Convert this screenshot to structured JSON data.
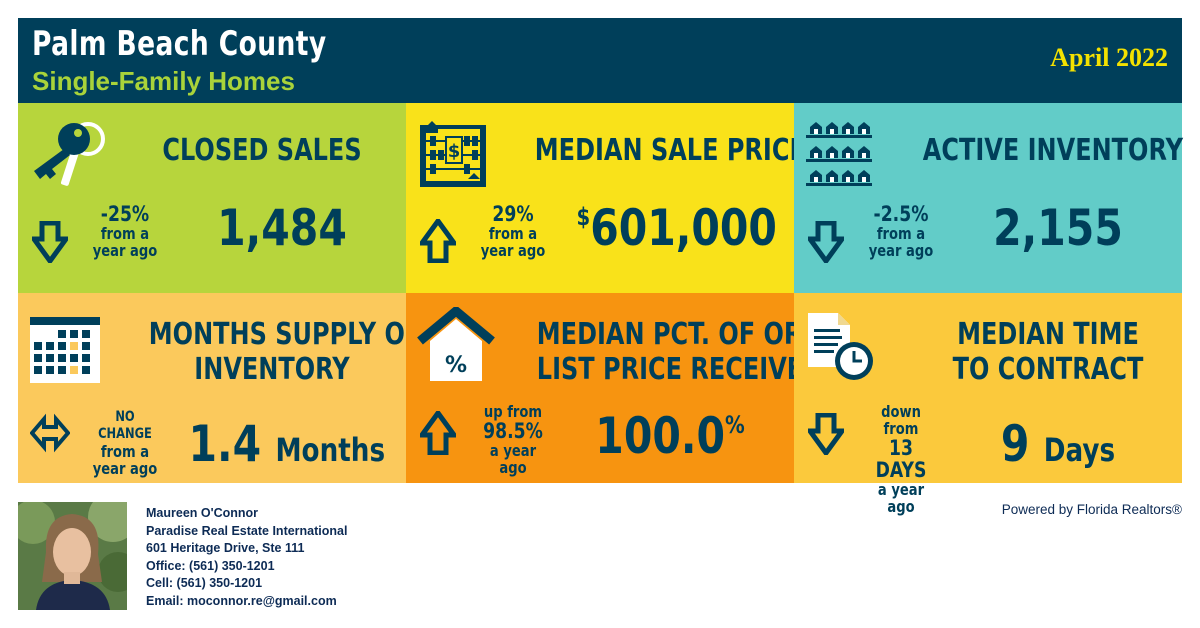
{
  "header": {
    "title": "Palm Beach County",
    "subtitle": "Single-Family Homes",
    "date": "April 2022"
  },
  "tiles": [
    {
      "title": "CLOSED SALES",
      "change_lines": [
        "-25%",
        "from a",
        "year ago"
      ],
      "direction": "down",
      "value": "1,484",
      "unit": "",
      "bg": "#b7d53c"
    },
    {
      "title": "MEDIAN SALE PRICE",
      "change_lines": [
        "29%",
        "from a",
        "year ago"
      ],
      "direction": "up",
      "value_prefix": "$",
      "value": "601,000",
      "unit": "",
      "bg": "#f9e21a"
    },
    {
      "title": "ACTIVE INVENTORY",
      "change_lines": [
        "-2.5%",
        "from a",
        "year ago"
      ],
      "direction": "down",
      "value": "2,155",
      "unit": "",
      "bg": "#62ccc8"
    },
    {
      "title_lines": [
        "MONTHS SUPPLY OF",
        "INVENTORY"
      ],
      "change_lines": [
        "NO CHANGE",
        "from a",
        "year ago"
      ],
      "direction": "none",
      "value": "1.4",
      "unit": "Months",
      "bg": "#fbc95c"
    },
    {
      "title_lines": [
        "MEDIAN PCT. OF ORIG.",
        "LIST PRICE RECEIVED"
      ],
      "change_lines": [
        "up from",
        "98.5%",
        "a year ago"
      ],
      "direction": "up",
      "value": "100.0",
      "value_suffix": "%",
      "unit": "",
      "bg": "#f79410"
    },
    {
      "title_lines": [
        "MEDIAN TIME",
        "TO CONTRACT"
      ],
      "change_lines": [
        "down from",
        "13 DAYS",
        "a year ago"
      ],
      "direction": "down",
      "value": "9",
      "unit": "Days",
      "bg": "#fbc93c"
    }
  ],
  "agent": {
    "name": "Maureen O'Connor",
    "company": "Paradise Real Estate International",
    "address": "601 Heritage Drive, Ste 111",
    "office": "Office: (561) 350-1201",
    "cell": "Cell: (561) 350-1201",
    "email": "Email: moconnor.re@gmail.com"
  },
  "powered_by": "Powered by Florida Realtors®",
  "colors": {
    "navy": "#003f5a",
    "green": "#b7d53c",
    "yellow": "#f9e21a",
    "teal": "#62ccc8",
    "peach": "#fbc95c",
    "orange": "#f79410",
    "gold": "#fbc93c"
  },
  "icons": [
    "keys-icon",
    "abacus-icon",
    "houses-icon",
    "calendar-icon",
    "house-percent-icon",
    "document-clock-icon",
    "arrow-down-icon",
    "arrow-up-icon",
    "arrow-sideways-icon"
  ]
}
